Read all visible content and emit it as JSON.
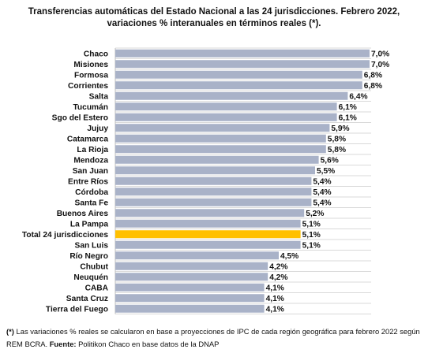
{
  "chart_data": {
    "type": "bar",
    "orientation": "horizontal",
    "title_lines": [
      "Transferencias automáticas del Estado Nacional a las 24 jurisdicciones. Febrero 2022,",
      "variaciones % interanuales en términos reales (*)."
    ],
    "categories": [
      "Chaco",
      "Misiones",
      "Formosa",
      "Corrientes",
      "Salta",
      "Tucumán",
      "Sgo del Estero",
      "Jujuy",
      "Catamarca",
      "La Rioja",
      "Mendoza",
      "San Juan",
      "Entre Ríos",
      "Córdoba",
      "Santa Fe",
      "Buenos Aires",
      "La Pampa",
      "Total 24 jurisdicciones",
      "San Luis",
      "Río Negro",
      "Chubut",
      "Neuquén",
      "CABA",
      "Santa Cruz",
      "Tierra del Fuego"
    ],
    "values": [
      7.0,
      7.0,
      6.8,
      6.8,
      6.4,
      6.1,
      6.1,
      5.9,
      5.8,
      5.8,
      5.6,
      5.5,
      5.4,
      5.4,
      5.4,
      5.2,
      5.1,
      5.1,
      5.1,
      4.5,
      4.2,
      4.2,
      4.1,
      4.1,
      4.1
    ],
    "value_labels": [
      "7,0%",
      "7,0%",
      "6,8%",
      "6,8%",
      "6,4%",
      "6,1%",
      "6,1%",
      "5,9%",
      "5,8%",
      "5,8%",
      "5,6%",
      "5,5%",
      "5,4%",
      "5,4%",
      "5,4%",
      "5,2%",
      "5,1%",
      "5,1%",
      "5,1%",
      "4,5%",
      "4,2%",
      "4,2%",
      "4,1%",
      "4,1%",
      "4,1%"
    ],
    "highlight_category": "Total 24 jurisdicciones",
    "colors": {
      "bar": "#a9b2c8",
      "highlight": "#ffc000",
      "grid": "#d9d9d9"
    },
    "xlim": [
      0,
      7.0
    ],
    "grid": true,
    "legend": false
  },
  "footnote": {
    "mark": "(*)",
    "text": " Las variaciones % reales se calcularon en base a proyecciones de IPC de cada región geográfica para febrero 2022 según REM BCRA. ",
    "source_label": "Fuente:",
    "source_text": " Politikon Chaco en base datos de la DNAP"
  }
}
